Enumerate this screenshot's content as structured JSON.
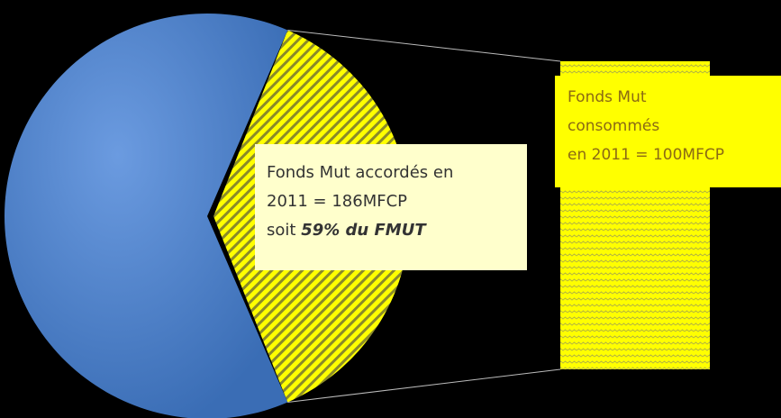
{
  "chart_data": {
    "type": "pie",
    "categories": [
      null,
      null
    ],
    "values": [
      63,
      37
    ],
    "colors": [
      "#4f81bd",
      "#ffff00"
    ],
    "annotations": [
      {
        "lines": [
          "Fonds Mut  accordés en",
          "2011 = 186MFCP",
          "soit",
          "59% du FMUT"
        ]
      },
      {
        "lines": [
          "Fonds Mut",
          "consommés",
          "en  2011 = 100MFCP"
        ]
      }
    ]
  }
}
